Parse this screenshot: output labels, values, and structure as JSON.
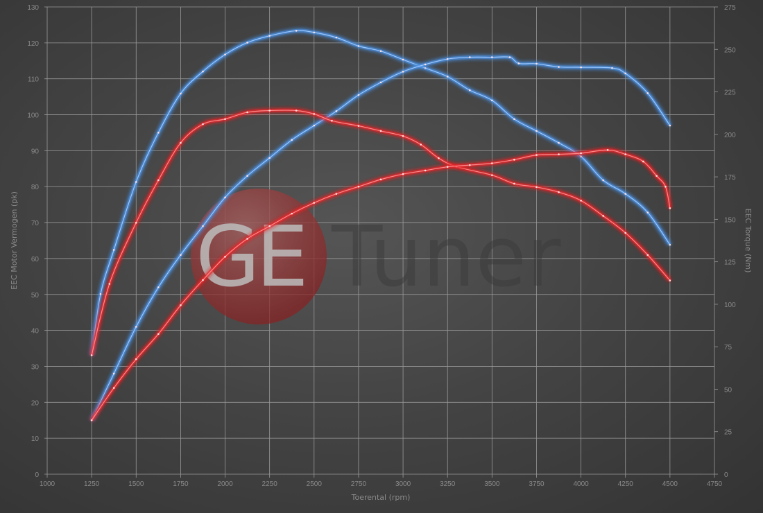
{
  "chart_data": {
    "type": "line",
    "title": "",
    "xlabel": "Toerental (rpm)",
    "ylabel": "EEC Motor Vermogen (pk)",
    "ylabel_right": "EEC Torque (Nm)",
    "xlim": [
      1000,
      4750
    ],
    "ylim": [
      0,
      130
    ],
    "ylim_right": [
      0,
      275
    ],
    "x_ticks": [
      "1000",
      "1250",
      "1500",
      "1750",
      "2000",
      "2250",
      "2500",
      "2750",
      "3000",
      "3250",
      "3500",
      "3750",
      "4000",
      "4250",
      "4500",
      "4750"
    ],
    "y_ticks": [
      "0",
      "10",
      "20",
      "30",
      "40",
      "50",
      "60",
      "70",
      "80",
      "90",
      "100",
      "110",
      "120",
      "130"
    ],
    "y_ticks_right": [
      "0",
      "25",
      "50",
      "75",
      "100",
      "125",
      "150",
      "175",
      "200",
      "225",
      "250",
      "275"
    ],
    "grid": true,
    "legend": "none",
    "watermark": "GETuner",
    "series": [
      {
        "axis": "right",
        "color": "#4a90e2",
        "x": [
          1250,
          1300,
          1375,
          1500,
          1625,
          1750,
          1875,
          2000,
          2125,
          2250,
          2400,
          2500,
          2625,
          2750,
          2875,
          3000,
          3125,
          3250,
          3375,
          3500,
          3625,
          3750,
          3875,
          4000,
          4125,
          4250,
          4375,
          4500
        ],
        "values": [
          70,
          106,
          132,
          172,
          201,
          224,
          237,
          247,
          254,
          258,
          261,
          260,
          257,
          252,
          249,
          244,
          239,
          234,
          226,
          220,
          209,
          202,
          195,
          187,
          173,
          165,
          154,
          135
        ]
      },
      {
        "axis": "left",
        "color": "#4a90e2",
        "x": [
          1250,
          1375,
          1500,
          1625,
          1750,
          1875,
          2000,
          2125,
          2250,
          2375,
          2500,
          2625,
          2750,
          2875,
          3000,
          3125,
          3250,
          3375,
          3500,
          3600,
          3650,
          3750,
          3875,
          4000,
          4175,
          4250,
          4375,
          4500
        ],
        "values": [
          15,
          28,
          41,
          52,
          61,
          69,
          77,
          83,
          88,
          93,
          97,
          101,
          105.5,
          109,
          112,
          114,
          115.5,
          116,
          116,
          116,
          114.3,
          114.2,
          113.3,
          113.2,
          113,
          111.5,
          106,
          97
        ]
      },
      {
        "axis": "right",
        "color": "#e8282b",
        "x": [
          1250,
          1350,
          1500,
          1625,
          1750,
          1875,
          2000,
          2125,
          2250,
          2400,
          2500,
          2600,
          2750,
          2875,
          3000,
          3100,
          3200,
          3300,
          3500,
          3625,
          3750,
          3875,
          4000,
          4125,
          4250,
          4375,
          4500
        ],
        "values": [
          70,
          112,
          148,
          173,
          195,
          206,
          209,
          213,
          214,
          214,
          212,
          208,
          205,
          202,
          199,
          194,
          186,
          181,
          176,
          171,
          169,
          166,
          161,
          152,
          142,
          129,
          114
        ]
      },
      {
        "axis": "left",
        "color": "#e8282b",
        "x": [
          1250,
          1375,
          1500,
          1625,
          1750,
          1875,
          2000,
          2125,
          2250,
          2375,
          2500,
          2625,
          2750,
          2875,
          3000,
          3125,
          3250,
          3375,
          3500,
          3625,
          3750,
          3875,
          4000,
          4150,
          4250,
          4350,
          4425,
          4475,
          4500
        ],
        "values": [
          15,
          24,
          32,
          39,
          47,
          54,
          60.5,
          65.5,
          69,
          72.5,
          75.5,
          78,
          80,
          82,
          83.5,
          84.5,
          85.5,
          86,
          86.5,
          87.5,
          88.8,
          89,
          89.3,
          90.2,
          89,
          87,
          83,
          80,
          74
        ]
      }
    ]
  }
}
